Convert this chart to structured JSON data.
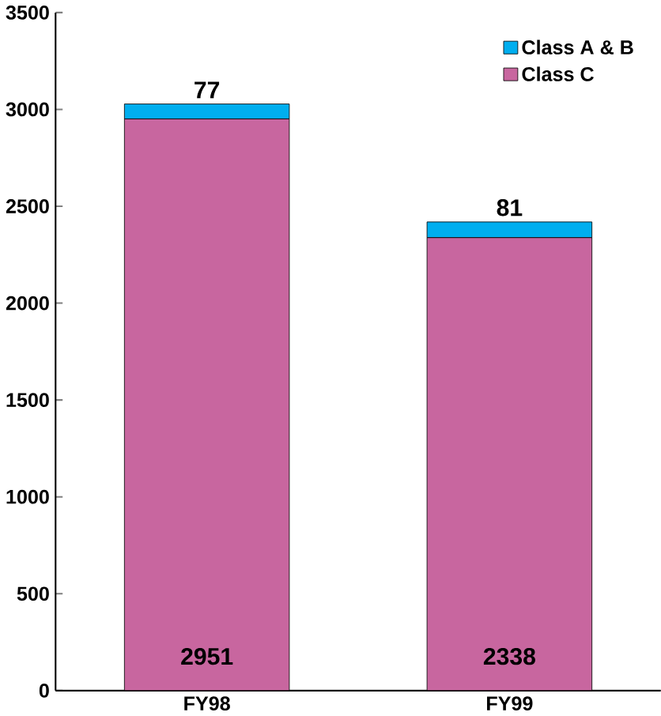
{
  "chart_data": {
    "type": "bar",
    "stacked": true,
    "categories": [
      "FY98",
      "FY99"
    ],
    "series": [
      {
        "name": "Class C",
        "color": "#c8669f",
        "values": [
          2951,
          2338
        ],
        "value_labels": [
          "2951",
          "2338"
        ]
      },
      {
        "name": "Class A & B",
        "color": "#00aeef",
        "values": [
          77,
          81
        ],
        "value_labels": [
          "77",
          "81"
        ]
      }
    ],
    "ylim": [
      0,
      3500
    ],
    "yticks": [
      0,
      500,
      1000,
      1500,
      2000,
      2500,
      3000,
      3500
    ],
    "grid": false,
    "legend": "top right"
  }
}
